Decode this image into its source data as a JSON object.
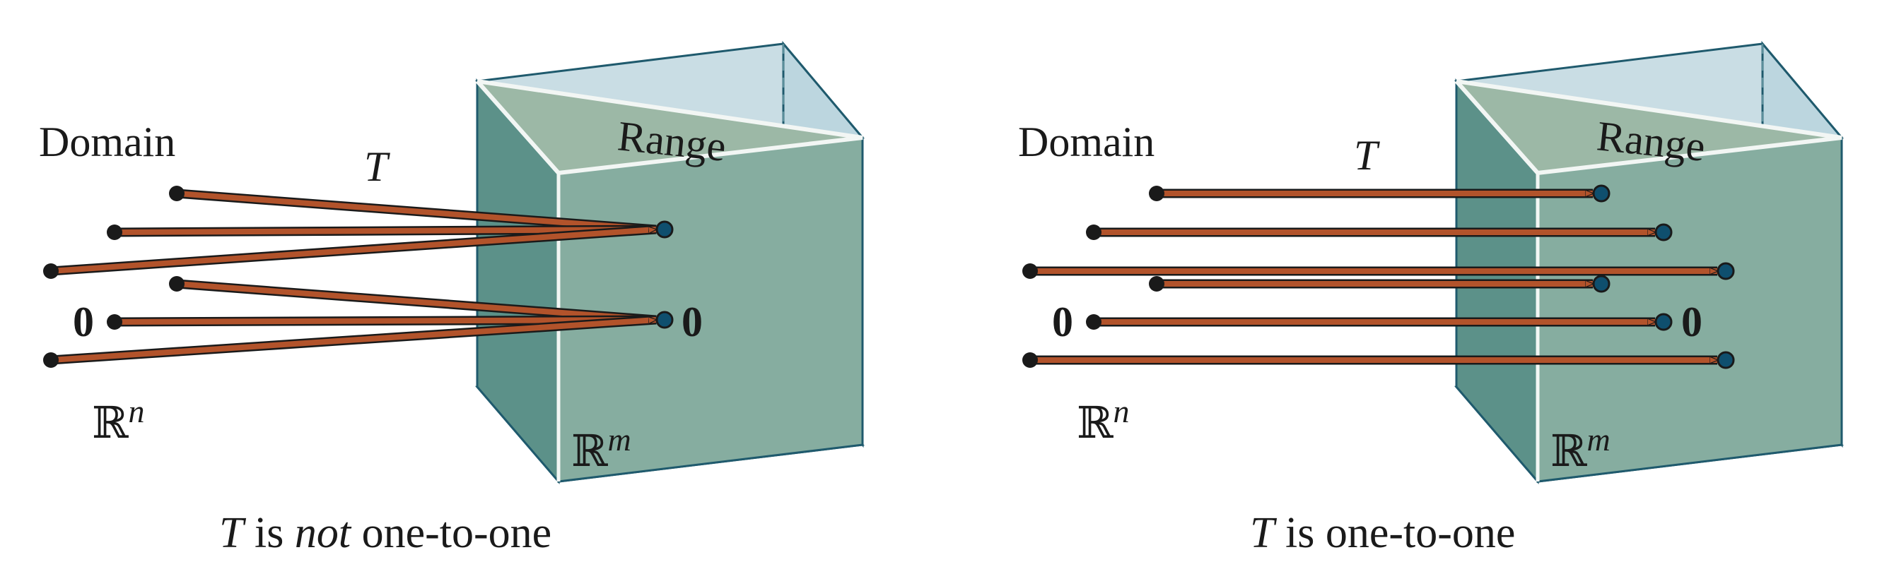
{
  "colors": {
    "arrow": "#b2532b",
    "arrow_outline": "#1a1a1a",
    "range_point": "#0f4f6e",
    "domain_point": "#1a1a1a",
    "prism_face": "#5f988b",
    "prism_glass": "#bcd6df",
    "prism_edge": "#1f5a6d"
  },
  "panels": [
    {
      "name": "not-one-to-one",
      "domain_label": "Domain",
      "range_label": "Range",
      "map_label": "T",
      "domain_space": "ℝ",
      "domain_space_sup": "n",
      "range_space": "ℝ",
      "range_space_sup": "m",
      "zero_domain": "0",
      "zero_range": "0",
      "caption_t": "T",
      "caption_is": " is ",
      "caption_not": "not",
      "caption_rest": " one-to-one"
    },
    {
      "name": "one-to-one",
      "domain_label": "Domain",
      "range_label": "Range",
      "map_label": "T",
      "domain_space": "ℝ",
      "domain_space_sup": "n",
      "range_space": "ℝ",
      "range_space_sup": "m",
      "zero_domain": "0",
      "zero_range": "0",
      "caption_t": "T",
      "caption_is": " is one-to-one"
    }
  ]
}
